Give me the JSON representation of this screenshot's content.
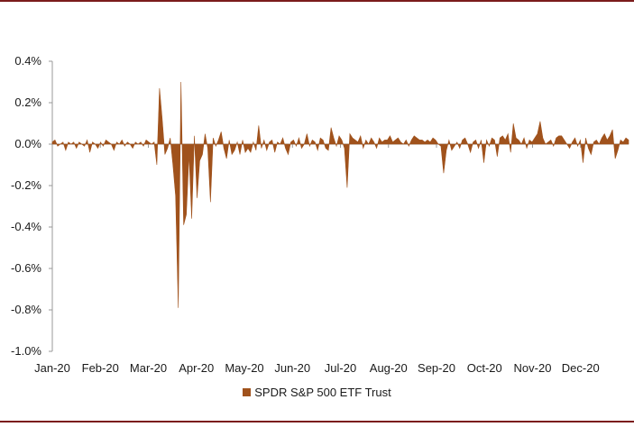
{
  "colors": {
    "series": "#a0521c",
    "rule": "#7b1c1c",
    "axis": "#999999"
  },
  "chart_data": {
    "type": "area",
    "title": "",
    "xlabel": "",
    "ylabel": "",
    "ylim": [
      -1.0,
      0.4
    ],
    "yticks": [
      -1.0,
      -0.8,
      -0.6,
      -0.4,
      -0.2,
      0.0,
      0.2,
      0.4
    ],
    "ytick_labels": [
      "-1.0%",
      "-0.8%",
      "-0.6%",
      "-0.4%",
      "-0.2%",
      "0.0%",
      "0.2%",
      "0.4%"
    ],
    "xtick_labels": [
      "Jan-20",
      "Feb-20",
      "Mar-20",
      "Apr-20",
      "May-20",
      "Jun-20",
      "Jul-20",
      "Aug-20",
      "Sep-20",
      "Oct-20",
      "Nov-20",
      "Dec-20"
    ],
    "grid": false,
    "legend_position": "bottom-center",
    "series": [
      {
        "name": "SPDR S&P 500 ETF Trust",
        "values": [
          0.01,
          0.02,
          -0.01,
          0.0,
          0.01,
          -0.03,
          0.01,
          0.0,
          0.01,
          -0.02,
          0.01,
          0.0,
          -0.01,
          0.02,
          -0.04,
          0.01,
          0.0,
          -0.02,
          0.01,
          -0.01,
          0.02,
          0.01,
          0.0,
          -0.03,
          0.01,
          0.0,
          0.02,
          -0.01,
          0.01,
          0.0,
          -0.02,
          0.01,
          0.0,
          0.01,
          -0.01,
          0.02,
          0.01,
          0.0,
          0.01,
          -0.1,
          0.27,
          0.12,
          -0.05,
          -0.02,
          0.03,
          -0.1,
          -0.25,
          -0.79,
          0.3,
          -0.39,
          -0.34,
          -0.05,
          -0.36,
          0.04,
          -0.26,
          -0.08,
          -0.05,
          0.05,
          -0.02,
          -0.28,
          0.03,
          -0.01,
          0.02,
          0.06,
          -0.02,
          -0.07,
          0.02,
          -0.05,
          -0.03,
          0.01,
          -0.05,
          0.02,
          -0.04,
          -0.02,
          -0.04,
          0.01,
          -0.03,
          0.09,
          -0.02,
          0.02,
          -0.03,
          0.01,
          0.02,
          -0.04,
          0.01,
          0.0,
          0.03,
          -0.02,
          -0.05,
          0.01,
          0.02,
          -0.01,
          0.03,
          -0.02,
          0.0,
          0.05,
          -0.01,
          0.02,
          0.01,
          -0.03,
          0.03,
          0.02,
          -0.02,
          -0.03,
          0.08,
          0.03,
          -0.01,
          0.04,
          0.02,
          -0.02,
          -0.21,
          0.05,
          0.03,
          0.02,
          0.01,
          0.04,
          -0.02,
          0.02,
          0.0,
          0.03,
          0.01,
          -0.02,
          0.03,
          0.01,
          0.02,
          0.02,
          0.04,
          0.01,
          0.02,
          0.03,
          0.01,
          0.0,
          0.02,
          -0.01,
          0.02,
          0.04,
          0.03,
          0.02,
          0.02,
          0.01,
          0.02,
          0.01,
          0.03,
          0.02,
          0.0,
          -0.01,
          -0.14,
          -0.03,
          0.02,
          -0.03,
          -0.01,
          0.01,
          -0.02,
          0.02,
          0.03,
          0.0,
          -0.04,
          0.01,
          0.02,
          -0.02,
          0.02,
          -0.09,
          0.02,
          -0.01,
          0.03,
          0.02,
          -0.06,
          0.03,
          0.04,
          0.02,
          0.05,
          -0.04,
          0.1,
          0.03,
          0.02,
          0.0,
          0.03,
          -0.02,
          0.02,
          0.01,
          0.03,
          0.05,
          0.11,
          0.03,
          0.0,
          0.01,
          0.02,
          -0.01,
          0.03,
          0.04,
          0.04,
          0.02,
          0.0,
          -0.02,
          0.01,
          0.03,
          -0.01,
          0.02,
          -0.09,
          0.03,
          -0.02,
          -0.05,
          0.01,
          0.02,
          0.0,
          0.03,
          0.05,
          0.02,
          0.04,
          0.07,
          -0.07,
          -0.03,
          0.02,
          0.01,
          0.03,
          0.02
        ]
      }
    ]
  }
}
